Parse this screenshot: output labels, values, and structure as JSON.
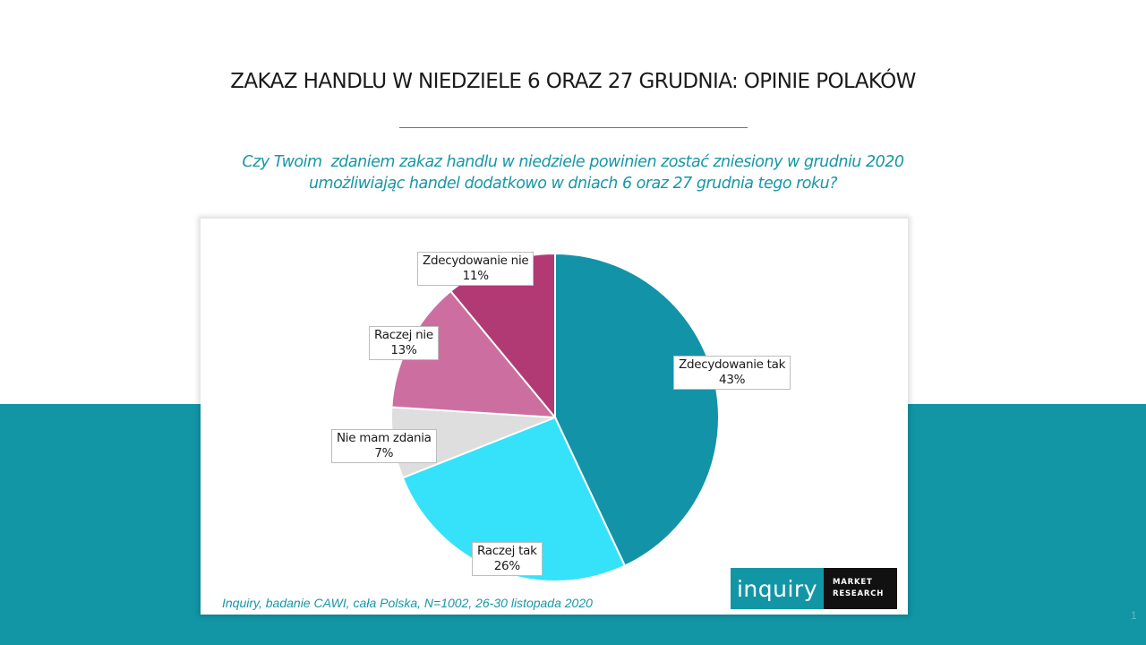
{
  "header": {
    "title": "ZAKAZ HANDLU W NIEDZIELE 6 ORAZ 27 GRUDNIA: OPINIE POLAKÓW",
    "question_line1": "Czy Twoim  zdaniem zakaz handlu w niedziele powinien zostać zniesiony w grudniu 2020",
    "question_line2": "umożliwiając handel dodatkowo w dniach 6 oraz 27 grudnia tego roku?"
  },
  "chart_data": {
    "type": "pie",
    "title": "Czy Twoim zdaniem zakaz handlu w niedziele powinien zostać zniesiony w grudniu 2020 umożliwiając handel dodatkowo w dniach 6 oraz 27 grudnia tego roku?",
    "categories": [
      "Zdecydowanie tak",
      "Raczej tak",
      "Nie mam zdania",
      "Raczej nie",
      "Zdecydowanie nie"
    ],
    "values": [
      43,
      26,
      7,
      13,
      11
    ],
    "unit": "%",
    "colors": [
      "#1393a7",
      "#35e2fa",
      "#dedede",
      "#cd6ea0",
      "#b13a74"
    ],
    "start_angle_deg": 0,
    "direction": "clockwise",
    "data_labels": [
      "Zdecydowanie tak\n43%",
      "Raczej tak\n26%",
      "Nie mam zdania\n7%",
      "Raczej nie\n13%",
      "Zdecydowanie nie\n11%"
    ]
  },
  "labels": [
    {
      "name": "Zdecydowanie tak",
      "pct": "43%"
    },
    {
      "name": "Raczej tak",
      "pct": "26%"
    },
    {
      "name": "Nie mam zdania",
      "pct": "7%"
    },
    {
      "name": "Raczej nie",
      "pct": "13%"
    },
    {
      "name": "Zdecydowanie nie",
      "pct": "11%"
    }
  ],
  "footer": {
    "source": "Inquiry, badanie CAWI, cała Polska, N=1002, 26-30 listopada 2020",
    "logo_main": "inquiry",
    "logo_sub1": "MARKET",
    "logo_sub2": "RESEARCH",
    "page_number": "1"
  },
  "colors": {
    "accent": "#1296a6",
    "background": "#ffffff"
  }
}
